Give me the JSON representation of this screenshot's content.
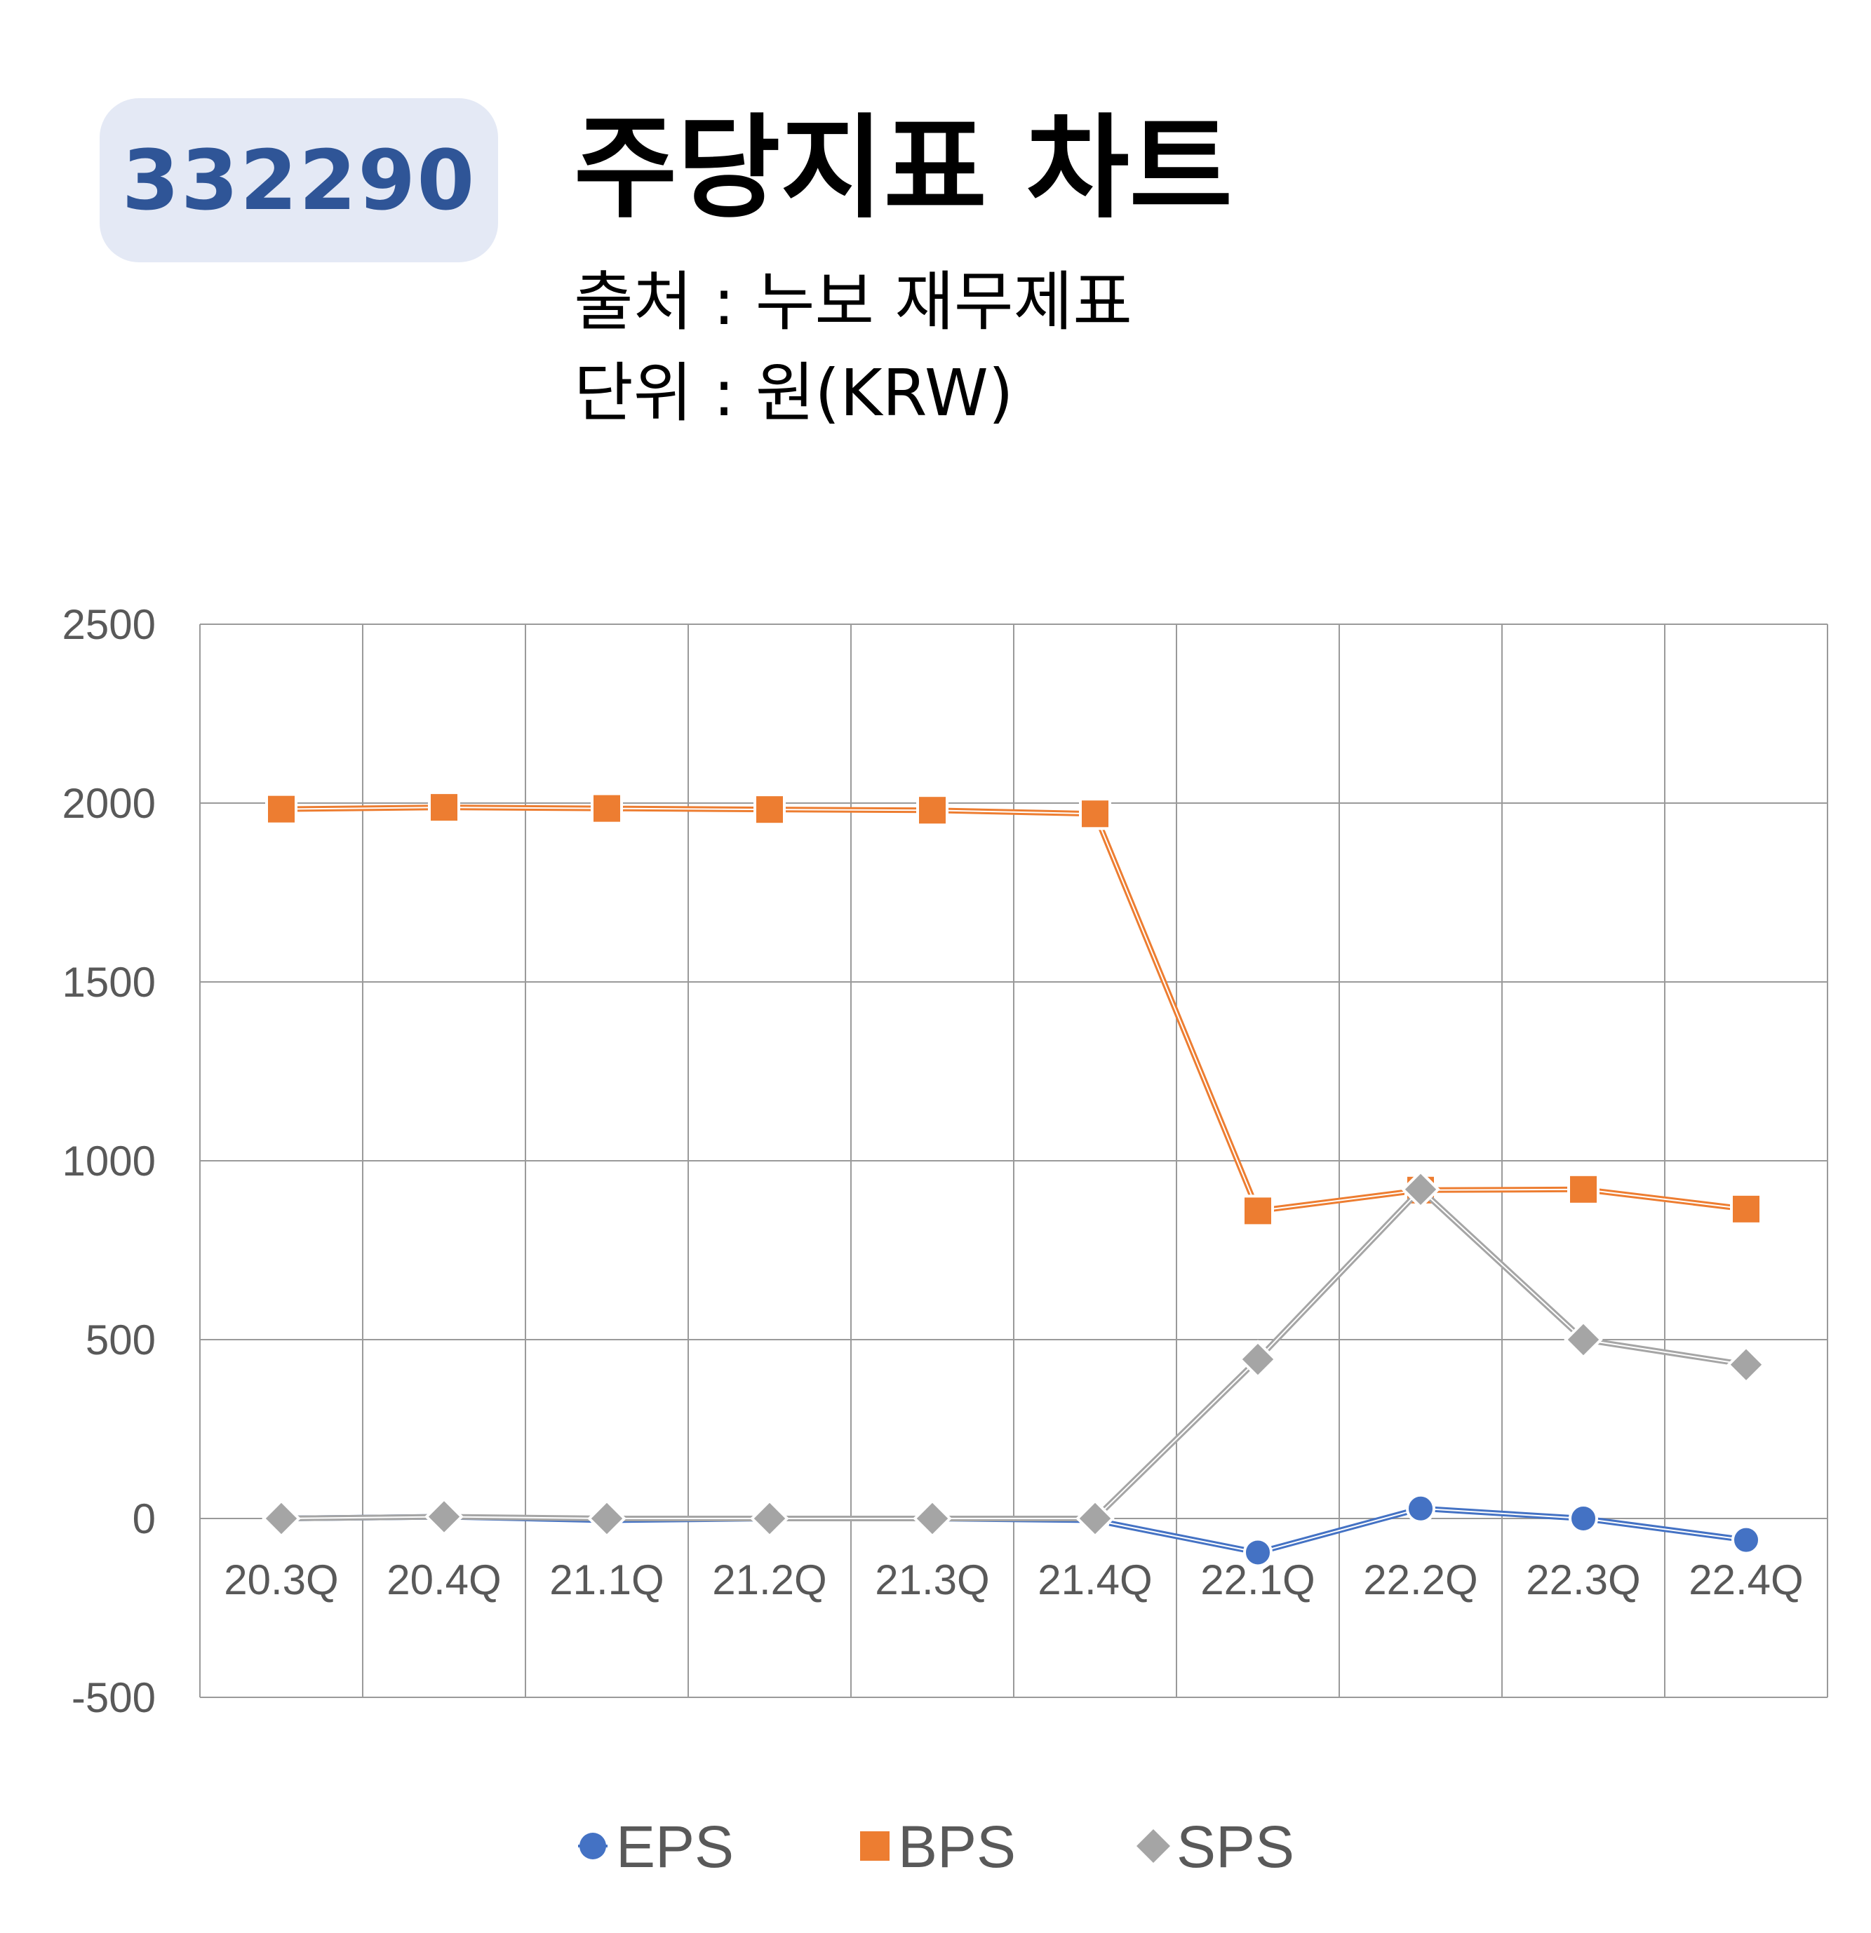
{
  "header": {
    "code": "332290",
    "title": "주당지표 차트",
    "source": "출처 : 누보 재무제표",
    "unit": "단위 : 원(KRW)"
  },
  "colors": {
    "EPS": "#4472c4",
    "BPS": "#ed7d31",
    "SPS": "#a5a5a5",
    "badge_bg": "#e4e9f5",
    "badge_text": "#2f5597"
  },
  "chart_data": {
    "type": "line",
    "title": "",
    "xlabel": "",
    "ylabel": "",
    "categories": [
      "20.3Q",
      "20.4Q",
      "21.1Q",
      "21.2Q",
      "21.3Q",
      "21.4Q",
      "22.1Q",
      "22.2Q",
      "22.3Q",
      "22.4Q"
    ],
    "ylim": [
      -500,
      2500
    ],
    "yticks": [
      "2500",
      "2000",
      "1500",
      "1000",
      "500",
      "0",
      "-500"
    ],
    "grid": true,
    "legend_position": "bottom",
    "series": [
      {
        "name": "EPS",
        "marker": "circle",
        "values": [
          0,
          5,
          -5,
          0,
          0,
          -5,
          -95,
          28,
          0,
          -60
        ]
      },
      {
        "name": "BPS",
        "marker": "square",
        "values": [
          1983,
          1988,
          1985,
          1982,
          1980,
          1970,
          860,
          918,
          920,
          865
        ]
      },
      {
        "name": "SPS",
        "marker": "diamond",
        "values": [
          0,
          5,
          0,
          0,
          0,
          0,
          445,
          920,
          500,
          430
        ]
      }
    ]
  }
}
